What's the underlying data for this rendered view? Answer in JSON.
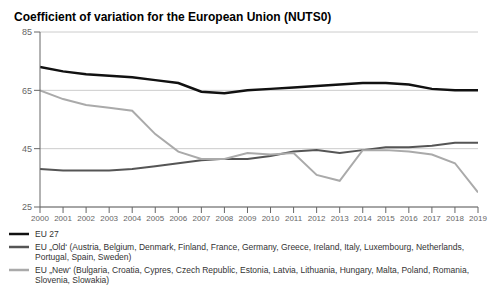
{
  "chart_data": {
    "type": "line",
    "title": "Coefficient of variation for the European Union (NUTS0)",
    "x": [
      2000,
      2001,
      2002,
      2003,
      2004,
      2005,
      2006,
      2007,
      2008,
      2009,
      2010,
      2011,
      2012,
      2013,
      2014,
      2015,
      2016,
      2017,
      2018,
      2019
    ],
    "xlim": [
      2000,
      2019
    ],
    "xticks": [
      2000,
      2001,
      2002,
      2003,
      2004,
      2005,
      2006,
      2007,
      2008,
      2009,
      2010,
      2011,
      2012,
      2013,
      2014,
      2015,
      2016,
      2017,
      2018,
      2019
    ],
    "ylim": [
      25,
      85
    ],
    "yticks": [
      25,
      45,
      65,
      85
    ],
    "grid": true,
    "legend": "bottom",
    "series": [
      {
        "name": "EU 27",
        "color": "#111111",
        "values": [
          73,
          71.5,
          70.5,
          70,
          69.5,
          68.5,
          67.5,
          64.5,
          64,
          65,
          65.5,
          66,
          66.5,
          67,
          67.5,
          67.5,
          67,
          65.5,
          65,
          65
        ]
      },
      {
        "name": "EU „Old‘ (Austria, Belgium, Denmark, Finland, France, Germany, Greece, Ireland, Italy, Luxembourg, Netherlands, Portugal, Spain, Sweden)",
        "color": "#555555",
        "values": [
          38,
          37.5,
          37.5,
          37.5,
          38,
          39,
          40,
          41,
          41.5,
          41.5,
          42.5,
          44,
          44.5,
          43.5,
          44.5,
          45.5,
          45.5,
          46,
          47,
          47
        ]
      },
      {
        "name": "EU „New‘ (Bulgaria, Croatia, Cypres, Czech Republic, Estonia, Latvia, Lithuania, Hungary, Malta, Poland, Romania, Slovenia, Slowakia)",
        "color": "#aaaaaa",
        "values": [
          65,
          62,
          60,
          59,
          58,
          50,
          44,
          41.5,
          41.5,
          43.5,
          43,
          43.5,
          36,
          34,
          44.5,
          44.5,
          44,
          43,
          40,
          30
        ]
      }
    ]
  }
}
